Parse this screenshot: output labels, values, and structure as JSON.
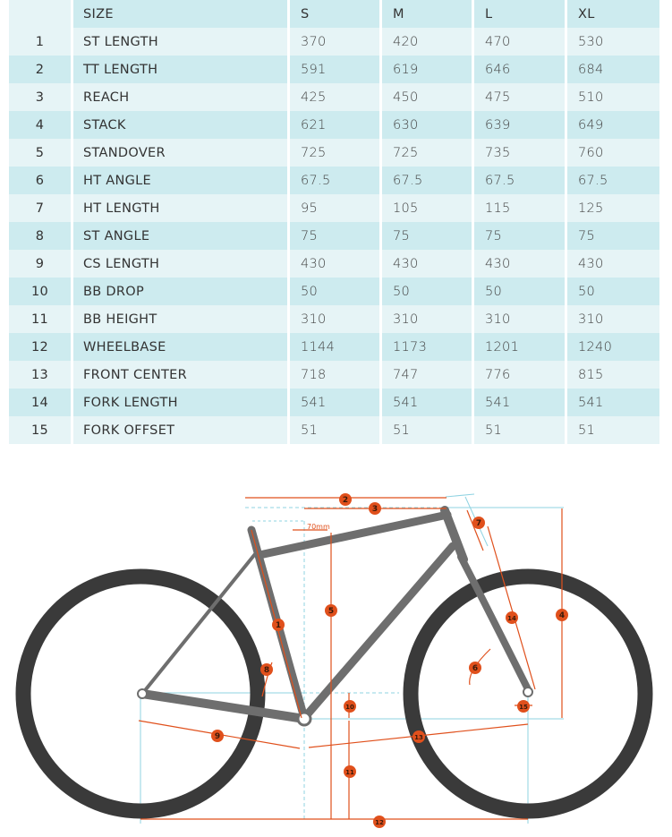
{
  "table": {
    "header": [
      "",
      "SIZE",
      "S",
      "M",
      "L",
      "XL"
    ],
    "rows": [
      [
        "1",
        "ST LENGTH",
        "370",
        "420",
        "470",
        "530"
      ],
      [
        "2",
        "TT LENGTH",
        "591",
        "619",
        "646",
        "684"
      ],
      [
        "3",
        "REACH",
        "425",
        "450",
        "475",
        "510"
      ],
      [
        "4",
        "STACK",
        "621",
        "630",
        "639",
        "649"
      ],
      [
        "5",
        "STANDOVER",
        "725",
        "725",
        "735",
        "760"
      ],
      [
        "6",
        "HT ANGLE",
        "67.5",
        "67.5",
        "67.5",
        "67.5"
      ],
      [
        "7",
        "HT LENGTH",
        "95",
        "105",
        "115",
        "125"
      ],
      [
        "8",
        "ST ANGLE",
        "75",
        "75",
        "75",
        "75"
      ],
      [
        "9",
        "CS LENGTH",
        "430",
        "430",
        "430",
        "430"
      ],
      [
        "10",
        "BB DROP",
        "50",
        "50",
        "50",
        "50"
      ],
      [
        "11",
        "BB HEIGHT",
        "310",
        "310",
        "310",
        "310"
      ],
      [
        "12",
        "WHEELBASE",
        "1144",
        "1173",
        "1201",
        "1240"
      ],
      [
        "13",
        "FRONT CENTER",
        "718",
        "747",
        "776",
        "815"
      ],
      [
        "14",
        "FORK LENGTH",
        "541",
        "541",
        "541",
        "541"
      ],
      [
        "15",
        "FORK OFFSET",
        "51",
        "51",
        "51",
        "51"
      ]
    ]
  },
  "diagram": {
    "offset_label": "70mm",
    "markers": [
      "1",
      "2",
      "3",
      "4",
      "5",
      "6",
      "7",
      "8",
      "9",
      "10",
      "11",
      "12",
      "13",
      "14",
      "15"
    ],
    "colors": {
      "accent": "#e0501c",
      "tire": "#3a3a3a",
      "frame": "#6e6e6e",
      "guide": "#8fd3e2",
      "table_light": "#e6f4f6",
      "table_dark": "#cdebef"
    }
  }
}
